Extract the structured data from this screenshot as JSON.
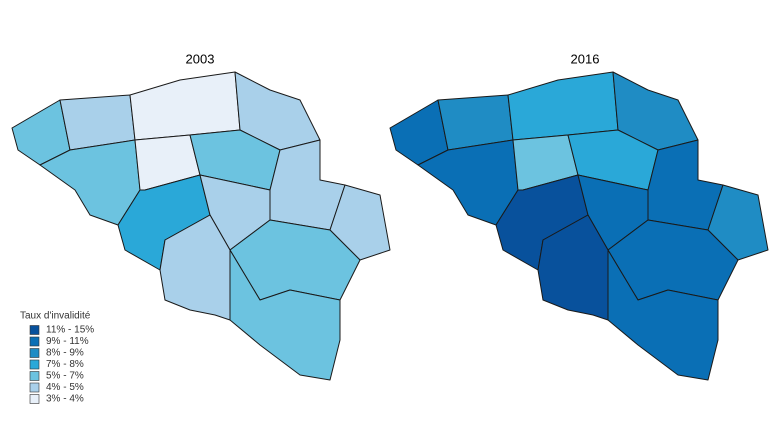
{
  "maps": [
    {
      "title": "2003"
    },
    {
      "title": "2016"
    }
  ],
  "legend": {
    "title": "Taux d'invalidité",
    "items": [
      {
        "label": "11% - 15%",
        "color": "#08519c"
      },
      {
        "label": "9% - 11%",
        "color": "#0a6fb5"
      },
      {
        "label": "8% - 9%",
        "color": "#1f8cc4"
      },
      {
        "label": "7% - 8%",
        "color": "#2aa8d8"
      },
      {
        "label": "5% - 7%",
        "color": "#6cc3e0"
      },
      {
        "label": "4% - 5%",
        "color": "#a9d0ea"
      },
      {
        "label": "3% - 4%",
        "color": "#e8f0f9"
      }
    ]
  }
}
